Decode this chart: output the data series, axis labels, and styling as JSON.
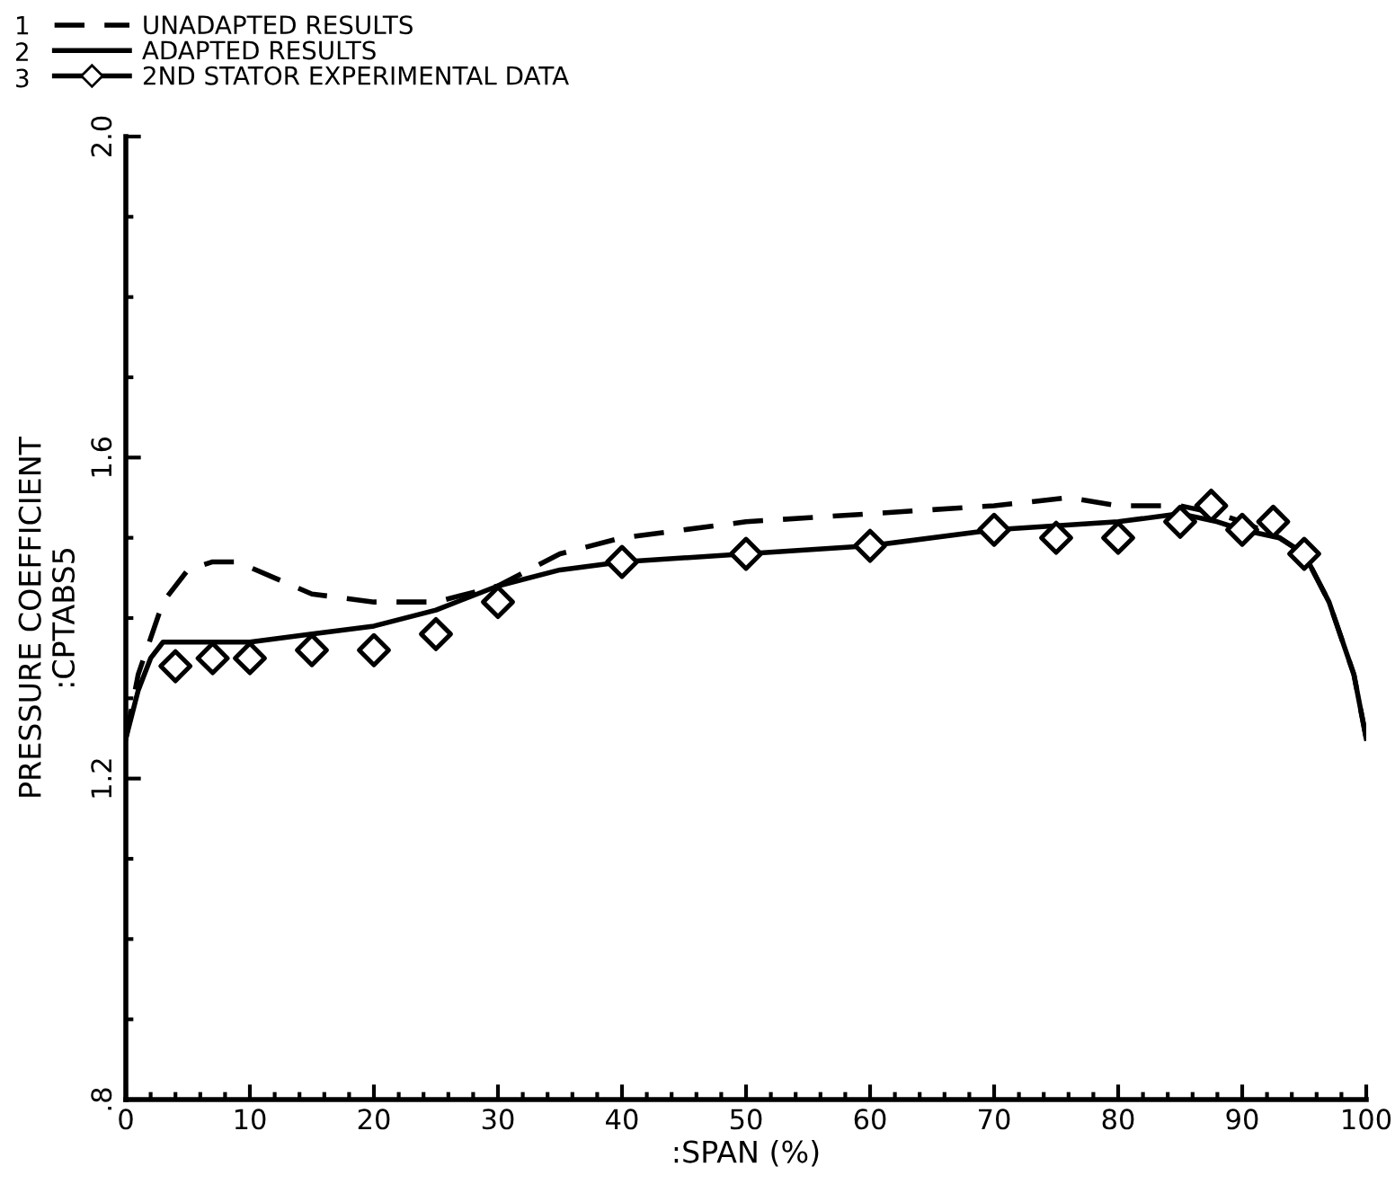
{
  "chart_data": {
    "type": "line",
    "xlabel": ":SPAN (%)",
    "ylabel": "PRESSURE COEFFICIENT\n:CPTABS5",
    "xlim": [
      0,
      100
    ],
    "xticks": [
      0,
      10,
      20,
      30,
      40,
      50,
      60,
      70,
      80,
      90,
      100
    ],
    "ylim": [
      0.8,
      2.0
    ],
    "yticks": [
      {
        "value": 0.8,
        "label": ".8"
      },
      1.2,
      1.6,
      {
        "value": 2.0,
        "label": "2.0"
      }
    ],
    "legend": "top left",
    "grid": false,
    "annotations": [
      "1",
      "2",
      "3"
    ],
    "series": [
      {
        "name": "UNADAPTED RESULTS",
        "color": "#000000",
        "line_style": "dashed",
        "marker": "none",
        "x": [
          0,
          1,
          3,
          5,
          7,
          9,
          12,
          15,
          20,
          25,
          30,
          35,
          40,
          50,
          60,
          70,
          76,
          80,
          85,
          88,
          90,
          93,
          95,
          97,
          99,
          100
        ],
        "values": [
          1.25,
          1.33,
          1.42,
          1.46,
          1.47,
          1.47,
          1.45,
          1.43,
          1.42,
          1.42,
          1.44,
          1.48,
          1.5,
          1.52,
          1.53,
          1.54,
          1.55,
          1.54,
          1.54,
          1.53,
          1.52,
          1.5,
          1.48,
          1.42,
          1.33,
          1.25
        ]
      },
      {
        "name": "ADAPTED RESULTS",
        "color": "#000000",
        "line_style": "solid",
        "marker": "none",
        "x": [
          0,
          1,
          2,
          3,
          5,
          10,
          15,
          20,
          25,
          30,
          35,
          40,
          50,
          60,
          70,
          80,
          85,
          88,
          90,
          93,
          95,
          97,
          99,
          100
        ],
        "values": [
          1.25,
          1.31,
          1.35,
          1.37,
          1.37,
          1.37,
          1.38,
          1.39,
          1.41,
          1.44,
          1.46,
          1.47,
          1.48,
          1.49,
          1.51,
          1.52,
          1.53,
          1.52,
          1.51,
          1.5,
          1.48,
          1.42,
          1.33,
          1.25
        ]
      },
      {
        "name": "2ND STATOR EXPERIMENTAL DATA",
        "type": "scatter",
        "color": "#000000",
        "marker": "diamond",
        "x": [
          4,
          7,
          10,
          15,
          20,
          25,
          30,
          40,
          50,
          60,
          70,
          75,
          80,
          85,
          87.5,
          90,
          92.5,
          95
        ],
        "values": [
          1.34,
          1.35,
          1.35,
          1.36,
          1.36,
          1.38,
          1.42,
          1.47,
          1.48,
          1.49,
          1.51,
          1.5,
          1.5,
          1.52,
          1.54,
          1.51,
          1.52,
          1.48
        ]
      }
    ]
  }
}
